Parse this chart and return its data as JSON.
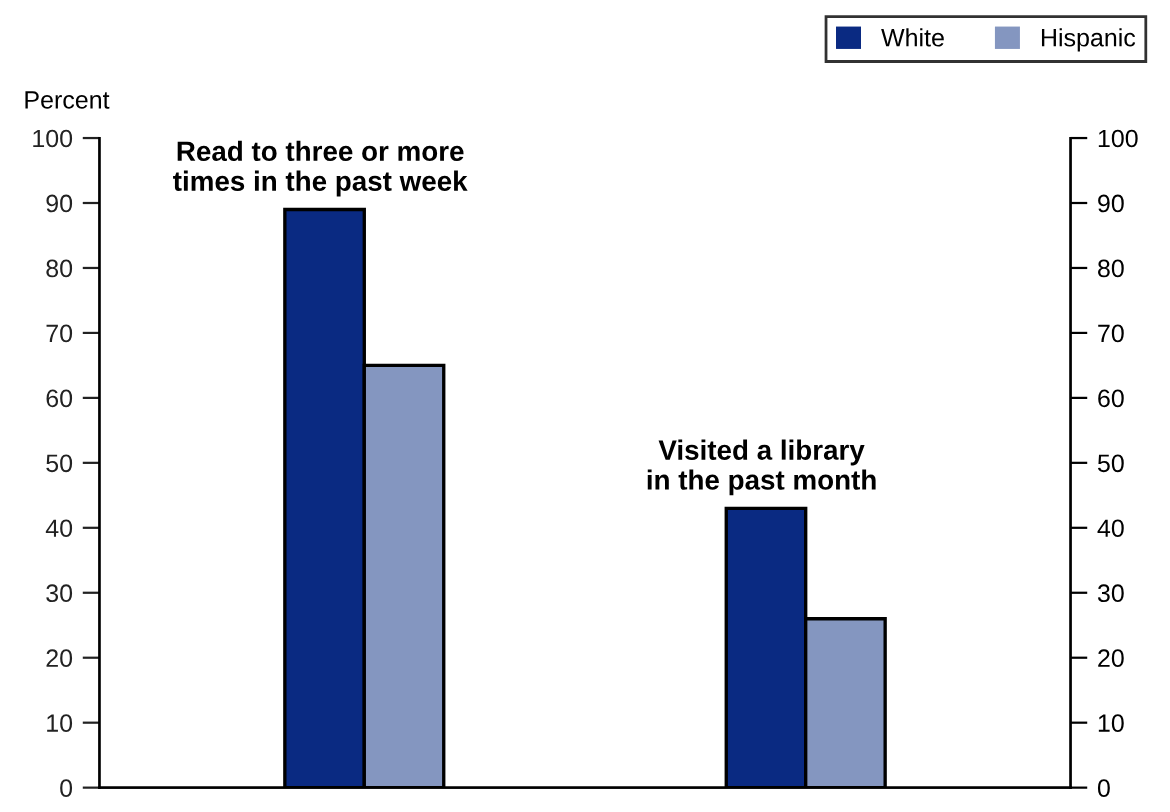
{
  "chart_data": {
    "type": "bar",
    "ylabel": "Percent",
    "categories": [
      "Read to three or more\ntimes in the past week",
      "Visited a library\nin the past month"
    ],
    "series": [
      {
        "name": "White",
        "color": "#0a2a82",
        "values": [
          89,
          43
        ]
      },
      {
        "name": "Hispanic",
        "color": "#8496c0",
        "values": [
          65,
          26
        ]
      }
    ],
    "ylim": [
      0,
      100
    ],
    "yticks": [
      0,
      10,
      20,
      30,
      40,
      50,
      60,
      70,
      80,
      90,
      100
    ],
    "y2lim": [
      0,
      100
    ],
    "y2ticks": [
      0,
      10,
      20,
      30,
      40,
      50,
      60,
      70,
      80,
      90,
      100
    ],
    "grid": false,
    "legend": "top right"
  }
}
